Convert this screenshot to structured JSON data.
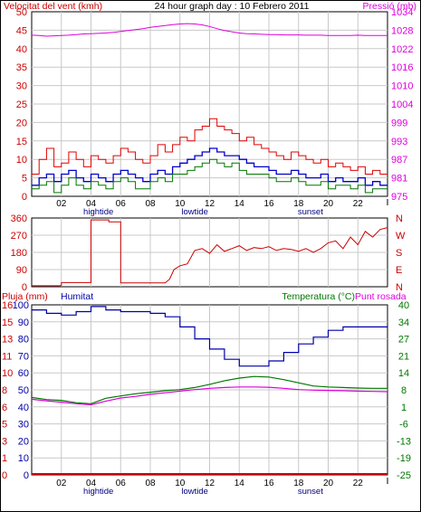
{
  "title": "24 hour graph day : 10 Febrero 2011",
  "colors": {
    "wind": "#cc0000",
    "gust": "#e00000",
    "avg": "#0000cc",
    "pressure": "#dd00dd",
    "temperature": "#007700",
    "dewpoint": "#dd00dd",
    "humidity": "#0000aa",
    "rain": "#cc0000",
    "grid": "#c8c8c8",
    "tidelabel": "#000080"
  },
  "chart_data": [
    {
      "type": "line",
      "name": "wind-pressure",
      "left_label": "Velocitat del vent (kmh)",
      "right_label": "Pressió (mb)",
      "left_ticks": [
        "0",
        "5",
        "10",
        "15",
        "20",
        "25",
        "30",
        "35",
        "40",
        "45",
        "50"
      ],
      "right_ticks": [
        "975",
        "981",
        "987",
        "993",
        "999",
        "1004",
        "1010",
        "1016",
        "1022",
        "1028",
        "1034"
      ],
      "x_ticks": [
        "02",
        "04",
        "06",
        "08",
        "10",
        "12",
        "14",
        "16",
        "18",
        "20",
        "22",
        ""
      ],
      "event_labels": [
        {
          "label": "hightide",
          "x": 4.5
        },
        {
          "label": "lowtide",
          "x": 11
        },
        {
          "label": "sunset",
          "x": 18.8
        }
      ],
      "xlim": [
        0,
        24
      ],
      "ylim": [
        0,
        50
      ],
      "y2lim": [
        975,
        1034
      ],
      "series": [
        {
          "key": "gust",
          "values": [
            6,
            10,
            13,
            8,
            9,
            12,
            10,
            8,
            11,
            10,
            9,
            11,
            13,
            12,
            10,
            9,
            11,
            14,
            12,
            14,
            16,
            15,
            18,
            19,
            21,
            19,
            18,
            17,
            15,
            16,
            14,
            13,
            12,
            11,
            10,
            12,
            11,
            10,
            9,
            10,
            8,
            9,
            8,
            7,
            8,
            6,
            7,
            6,
            6
          ]
        },
        {
          "key": "avg",
          "values": [
            3,
            5,
            6,
            4,
            6,
            7,
            5,
            4,
            6,
            5,
            4,
            6,
            7,
            6,
            5,
            4,
            6,
            7,
            6,
            8,
            9,
            10,
            11,
            12,
            13,
            12,
            11,
            11,
            10,
            9,
            8,
            8,
            7,
            6,
            6,
            7,
            6,
            5,
            5,
            6,
            4,
            5,
            4,
            4,
            5,
            3,
            4,
            3,
            3
          ]
        },
        {
          "key": "wind",
          "values": [
            2,
            3,
            4,
            1,
            3,
            5,
            3,
            2,
            4,
            3,
            2,
            4,
            5,
            4,
            2,
            2,
            4,
            5,
            4,
            6,
            6,
            7,
            8,
            9,
            10,
            9,
            8,
            9,
            7,
            6,
            6,
            6,
            5,
            4,
            4,
            5,
            4,
            3,
            3,
            4,
            2,
            3,
            3,
            2,
            3,
            1,
            2,
            2,
            2
          ]
        },
        {
          "key": "pressure",
          "values": [
            1026.5,
            1026.4,
            1026.2,
            1026.3,
            1026.4,
            1026.5,
            1026.7,
            1026.9,
            1027.0,
            1027.1,
            1027.2,
            1027.4,
            1027.7,
            1028.0,
            1028.3,
            1028.6,
            1029.0,
            1029.3,
            1029.6,
            1029.9,
            1030.1,
            1030.2,
            1030.1,
            1029.8,
            1029.3,
            1028.6,
            1028.0,
            1027.6,
            1027.2,
            1027.0,
            1026.9,
            1026.8,
            1026.7,
            1026.7,
            1026.6,
            1026.6,
            1026.6,
            1026.5,
            1026.5,
            1026.5,
            1026.4,
            1026.4,
            1026.4,
            1026.4,
            1026.5,
            1026.4,
            1026.4,
            1026.4,
            1026.4
          ]
        }
      ]
    },
    {
      "type": "line",
      "name": "wind-direction",
      "left_ticks": [
        "0",
        "90",
        "180",
        "270",
        "360"
      ],
      "right_ticks": [
        "N",
        "E",
        "S",
        "W",
        "N"
      ],
      "xlim": [
        0,
        24
      ],
      "ylim": [
        0,
        360
      ],
      "values": [
        [
          0,
          5
        ],
        [
          2.0,
          5
        ],
        [
          2.0,
          22
        ],
        [
          4.0,
          22
        ],
        [
          4.0,
          350
        ],
        [
          5.2,
          350
        ],
        [
          5.2,
          340
        ],
        [
          6.0,
          340
        ],
        [
          6.0,
          20
        ],
        [
          9.0,
          20
        ],
        [
          9.3,
          40
        ],
        [
          9.6,
          90
        ],
        [
          10.0,
          110
        ],
        [
          10.5,
          120
        ],
        [
          11.0,
          190
        ],
        [
          11.5,
          200
        ],
        [
          12.0,
          175
        ],
        [
          12.5,
          220
        ],
        [
          13.0,
          185
        ],
        [
          13.5,
          200
        ],
        [
          14.0,
          215
        ],
        [
          14.5,
          190
        ],
        [
          15.0,
          205
        ],
        [
          15.5,
          200
        ],
        [
          16.0,
          210
        ],
        [
          16.5,
          190
        ],
        [
          17.0,
          200
        ],
        [
          17.5,
          195
        ],
        [
          18.0,
          185
        ],
        [
          18.5,
          200
        ],
        [
          19.0,
          180
        ],
        [
          19.5,
          200
        ],
        [
          20.0,
          230
        ],
        [
          20.5,
          240
        ],
        [
          21.0,
          200
        ],
        [
          21.5,
          260
        ],
        [
          22.0,
          220
        ],
        [
          22.5,
          290
        ],
        [
          23.0,
          260
        ],
        [
          23.5,
          300
        ],
        [
          24.0,
          310
        ]
      ]
    },
    {
      "type": "line",
      "name": "humidity-temperature",
      "left_label": "Pluja (mm)",
      "left_label2": "Humitat",
      "right_label": "Temperatura (°C)",
      "right_label2": "Punt rosada",
      "rain_ticks": [
        "0",
        "1",
        "3",
        "5",
        "6",
        "8",
        "10",
        "11",
        "13",
        "15",
        "16"
      ],
      "humidity_ticks": [
        "0",
        "10",
        "20",
        "30",
        "40",
        "50",
        "60",
        "70",
        "80",
        "90",
        "100"
      ],
      "temp_ticks": [
        "-25",
        "-19",
        "-13",
        "-6",
        "1",
        "8",
        "14",
        "21",
        "27",
        "34",
        "40"
      ],
      "x_ticks": [
        "02",
        "04",
        "06",
        "08",
        "10",
        "12",
        "14",
        "16",
        "18",
        "20",
        "22",
        ""
      ],
      "event_labels": [
        {
          "label": "hightide",
          "x": 4.5
        },
        {
          "label": "lowtide",
          "x": 11
        },
        {
          "label": "sunset",
          "x": 18.8
        }
      ],
      "xlim": [
        0,
        24
      ],
      "ylim": [
        0,
        100
      ],
      "y2lim": [
        -25,
        40
      ],
      "series": [
        {
          "key": "humidity",
          "values": [
            [
              0,
              97
            ],
            [
              1,
              95
            ],
            [
              2,
              94
            ],
            [
              3,
              96
            ],
            [
              4,
              99
            ],
            [
              5,
              97
            ],
            [
              6,
              96
            ],
            [
              7,
              96
            ],
            [
              8,
              95
            ],
            [
              9,
              93
            ],
            [
              10,
              87
            ],
            [
              11,
              80
            ],
            [
              12,
              74
            ],
            [
              13,
              68
            ],
            [
              14,
              64
            ],
            [
              15,
              64
            ],
            [
              16,
              67
            ],
            [
              17,
              72
            ],
            [
              18,
              77
            ],
            [
              19,
              81
            ],
            [
              20,
              85
            ],
            [
              21,
              87
            ],
            [
              22,
              87
            ],
            [
              23,
              87
            ],
            [
              24,
              87
            ]
          ]
        },
        {
          "key": "temperature",
          "values": [
            [
              0,
              4.6
            ],
            [
              1,
              3.8
            ],
            [
              2,
              3.5
            ],
            [
              3,
              2.6
            ],
            [
              4,
              2.2
            ],
            [
              5,
              4.3
            ],
            [
              6,
              5.2
            ],
            [
              7,
              6.0
            ],
            [
              8,
              6.6
            ],
            [
              9,
              7.2
            ],
            [
              10,
              7.6
            ],
            [
              11,
              8.4
            ],
            [
              12,
              9.6
            ],
            [
              13,
              11.0
            ],
            [
              14,
              12.0
            ],
            [
              15,
              12.6
            ],
            [
              16,
              12.4
            ],
            [
              17,
              11.4
            ],
            [
              18,
              10.2
            ],
            [
              19,
              9.0
            ],
            [
              20,
              8.6
            ],
            [
              21,
              8.4
            ],
            [
              22,
              8.2
            ],
            [
              23,
              8.1
            ],
            [
              24,
              8.1
            ]
          ]
        },
        {
          "key": "dewpoint",
          "values": [
            [
              0,
              3.9
            ],
            [
              1,
              3.3
            ],
            [
              2,
              2.8
            ],
            [
              3,
              2.2
            ],
            [
              4,
              1.8
            ],
            [
              5,
              3.2
            ],
            [
              6,
              4.4
            ],
            [
              7,
              5.0
            ],
            [
              8,
              5.8
            ],
            [
              9,
              6.4
            ],
            [
              10,
              7.0
            ],
            [
              11,
              7.6
            ],
            [
              12,
              8.1
            ],
            [
              13,
              8.4
            ],
            [
              14,
              8.6
            ],
            [
              15,
              8.6
            ],
            [
              16,
              8.5
            ],
            [
              17,
              8.1
            ],
            [
              18,
              7.6
            ],
            [
              19,
              7.4
            ],
            [
              20,
              7.3
            ],
            [
              21,
              7.2
            ],
            [
              22,
              7.0
            ],
            [
              23,
              6.9
            ],
            [
              24,
              6.8
            ]
          ]
        },
        {
          "key": "rain",
          "values": [
            [
              0,
              0
            ],
            [
              24,
              0
            ]
          ]
        }
      ]
    }
  ]
}
